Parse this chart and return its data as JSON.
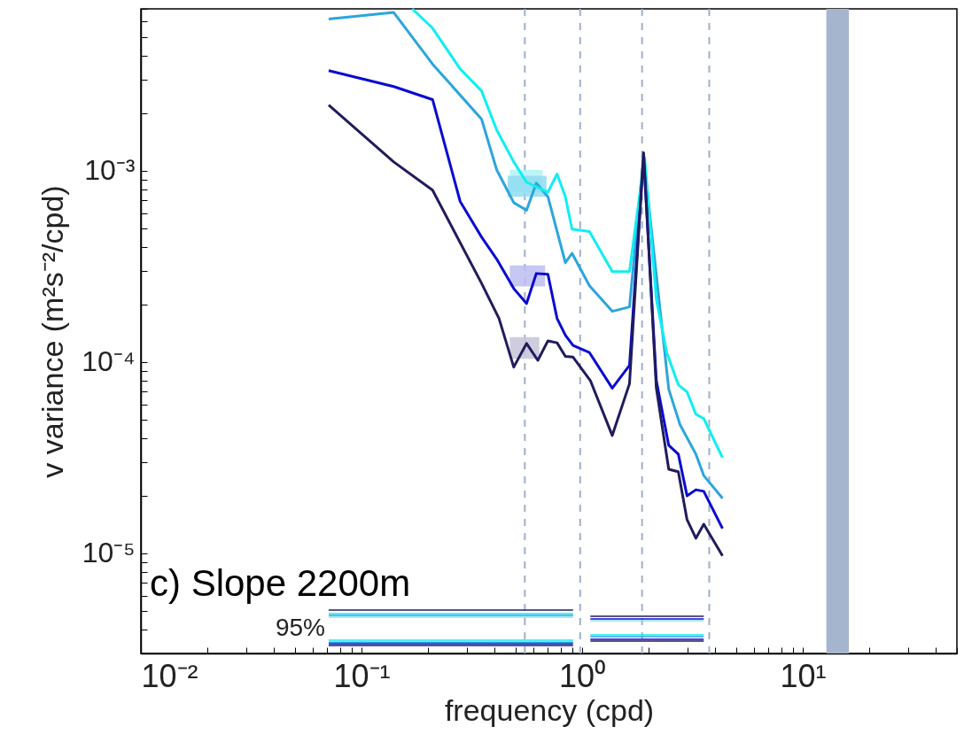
{
  "chart_data": {
    "type": "line",
    "title": "c) Slope 2200m",
    "xlabel": "frequency (cpd)",
    "ylabel": "v variance (m²s⁻²/cpd)",
    "log": "xy",
    "grid": false,
    "marker": "none",
    "line_style": "solid",
    "xlim": [
      0.01,
      50
    ],
    "ylim": [
      3e-06,
      0.007
    ],
    "xticks": [
      {
        "value": 0.01,
        "label": "10⁻²"
      },
      {
        "value": 0.02,
        "label": null
      },
      {
        "value": 0.03,
        "label": null
      },
      {
        "value": 0.04,
        "label": null
      },
      {
        "value": 0.05,
        "label": null
      },
      {
        "value": 0.06,
        "label": null
      },
      {
        "value": 0.07,
        "label": null
      },
      {
        "value": 0.08,
        "label": null
      },
      {
        "value": 0.09,
        "label": null
      },
      {
        "value": 0.1,
        "label": "10⁻¹"
      },
      {
        "value": 0.2,
        "label": null
      },
      {
        "value": 0.3,
        "label": null
      },
      {
        "value": 0.4,
        "label": null
      },
      {
        "value": 0.5,
        "label": null
      },
      {
        "value": 0.6,
        "label": null
      },
      {
        "value": 0.7,
        "label": null
      },
      {
        "value": 0.8,
        "label": null
      },
      {
        "value": 0.9,
        "label": null
      },
      {
        "value": 1,
        "label": "10⁰"
      },
      {
        "value": 2,
        "label": null
      },
      {
        "value": 3,
        "label": null
      },
      {
        "value": 4,
        "label": null
      },
      {
        "value": 5,
        "label": null
      },
      {
        "value": 6,
        "label": null
      },
      {
        "value": 7,
        "label": null
      },
      {
        "value": 8,
        "label": null
      },
      {
        "value": 9,
        "label": null
      },
      {
        "value": 10,
        "label": "10¹"
      },
      {
        "value": 20,
        "label": null
      },
      {
        "value": 30,
        "label": null
      },
      {
        "value": 40,
        "label": null
      },
      {
        "value": 50,
        "label": null
      }
    ],
    "yticks": [
      {
        "value": 4e-06,
        "label": null
      },
      {
        "value": 5e-06,
        "label": null
      },
      {
        "value": 6e-06,
        "label": null
      },
      {
        "value": 7e-06,
        "label": null
      },
      {
        "value": 8e-06,
        "label": null
      },
      {
        "value": 9e-06,
        "label": null
      },
      {
        "value": 1e-05,
        "label": "10⁻⁵"
      },
      {
        "value": 2e-05,
        "label": null
      },
      {
        "value": 3e-05,
        "label": null
      },
      {
        "value": 4e-05,
        "label": null
      },
      {
        "value": 5e-05,
        "label": null
      },
      {
        "value": 6e-05,
        "label": null
      },
      {
        "value": 7e-05,
        "label": null
      },
      {
        "value": 8e-05,
        "label": null
      },
      {
        "value": 9e-05,
        "label": null
      },
      {
        "value": 0.0001,
        "label": "10⁻⁴"
      },
      {
        "value": 0.0002,
        "label": null
      },
      {
        "value": 0.0003,
        "label": null
      },
      {
        "value": 0.0004,
        "label": null
      },
      {
        "value": 0.0005,
        "label": null
      },
      {
        "value": 0.0006,
        "label": null
      },
      {
        "value": 0.0007,
        "label": null
      },
      {
        "value": 0.0008,
        "label": null
      },
      {
        "value": 0.0009,
        "label": null
      },
      {
        "value": 0.001,
        "label": "10⁻³"
      },
      {
        "value": 0.002,
        "label": null
      },
      {
        "value": 0.003,
        "label": null
      },
      {
        "value": 0.004,
        "label": null
      },
      {
        "value": 0.005,
        "label": null
      },
      {
        "value": 0.006,
        "label": null
      },
      {
        "value": 0.007,
        "label": null
      }
    ],
    "series": [
      {
        "type": "line",
        "color": "#2ca5dc",
        "x": [
          0.071,
          0.14,
          0.21,
          0.35,
          0.41,
          0.49,
          0.56,
          0.62,
          0.7,
          0.84,
          0.9,
          1.08,
          1.37,
          1.64,
          1.9,
          2.47,
          2.78,
          3.28,
          3.56,
          4.33
        ],
        "values": [
          0.0062,
          0.0067,
          0.0036,
          0.00186,
          0.00101,
          0.00068,
          0.00062,
          0.00086,
          0.00073,
          0.00033,
          0.00037,
          0.00025,
          0.000184,
          0.000194,
          0.00117,
          7.2e-05,
          4.7e-05,
          3.3e-05,
          2.55e-05,
          1.94e-05
        ]
      },
      {
        "type": "line",
        "color": "#10eef2",
        "x": [
          0.17,
          0.21,
          0.28,
          0.35,
          0.41,
          0.49,
          0.56,
          0.7,
          0.77,
          0.84,
          0.9,
          1.08,
          1.37,
          1.64,
          1.92,
          2.17,
          2.42,
          2.73,
          2.99,
          3.28,
          3.56,
          4.33
        ],
        "values": [
          0.007,
          0.00555,
          0.0034,
          0.00261,
          0.00163,
          0.00111,
          0.00087,
          0.00077,
          0.00096,
          0.00073,
          0.000495,
          0.00048,
          0.000297,
          0.000297,
          0.00117,
          0.000213,
          0.000112,
          7.6e-05,
          6.97e-05,
          5.33e-05,
          5.06e-05,
          3.16e-05
        ]
      },
      {
        "type": "line",
        "color": "#0a0ad2",
        "x": [
          0.071,
          0.14,
          0.21,
          0.28,
          0.35,
          0.41,
          0.49,
          0.56,
          0.62,
          0.7,
          0.77,
          0.84,
          0.91,
          1.08,
          1.37,
          1.64,
          1.9,
          2.17,
          2.47,
          2.73,
          2.99,
          3.28,
          3.56,
          4.33
        ],
        "values": [
          0.00333,
          0.00275,
          0.00235,
          0.00069,
          0.00045,
          0.000345,
          0.000242,
          0.000202,
          0.00029,
          0.000287,
          0.000169,
          0.000138,
          0.000122,
          0.000112,
          7.3e-05,
          9.6e-05,
          0.00119,
          8e-05,
          3.67e-05,
          3.3e-05,
          2e-05,
          2.15e-05,
          2.11e-05,
          1.35e-05
        ]
      },
      {
        "type": "line",
        "color": "#201c5c",
        "x": [
          0.071,
          0.14,
          0.21,
          0.35,
          0.42,
          0.49,
          0.56,
          0.63,
          0.7,
          0.77,
          0.84,
          0.91,
          1.09,
          1.37,
          1.64,
          1.9,
          2.17,
          2.47,
          2.73,
          2.99,
          3.28,
          3.56,
          4.33
        ],
        "values": [
          0.0022,
          0.00111,
          0.00079,
          0.000258,
          0.000169,
          9.4e-05,
          0.000125,
          0.000102,
          0.000129,
          0.000126,
          0.000107,
          0.000106,
          8e-05,
          4.13e-05,
          7.7e-05,
          0.00124,
          7.3e-05,
          2.75e-05,
          2.67e-05,
          1.5e-05,
          1.2e-05,
          1.42e-05,
          9.7e-06
        ]
      },
      {
        "type": "line",
        "color": "#aef4f8",
        "x": [
          0.47,
          0.66
        ],
        "values": [
          null,
          null
        ],
        "lower": [
          0.00077,
          0.00077
        ],
        "upper": [
          0.00101,
          0.00101
        ]
      },
      {
        "type": "line",
        "color": "#8fdcf0",
        "x": [
          0.46,
          0.69
        ],
        "values": [
          null,
          null
        ],
        "lower": [
          0.00073,
          0.00073
        ],
        "upper": [
          0.00094,
          0.00094
        ]
      },
      {
        "type": "line",
        "color": "#bdbdf2",
        "x": [
          0.47,
          0.68
        ],
        "values": [
          null,
          null
        ],
        "lower": [
          0.000248,
          0.000248
        ],
        "upper": [
          0.00032,
          0.00032
        ]
      },
      {
        "type": "line",
        "color": "#c6c4d8",
        "x": [
          0.47,
          0.64
        ],
        "values": [
          null,
          null
        ],
        "lower": [
          0.000104,
          0.000104
        ],
        "upper": [
          0.000135,
          0.000135
        ]
      },
      {
        "type": "line",
        "color": "#201c5c",
        "x": [
          0.071,
          0.91
        ],
        "values": [
          5.06e-06,
          5.06e-06
        ]
      },
      {
        "type": "line",
        "color": "#10eef2",
        "x": [
          0.071,
          0.91
        ],
        "values": [
          4.84e-06,
          4.84e-06
        ]
      },
      {
        "type": "line",
        "color": "#2ca5dc",
        "x": [
          0.071,
          0.91
        ],
        "values": [
          4.74e-06,
          4.74e-06
        ]
      },
      {
        "type": "line",
        "color": "#8fdcf0",
        "x": [
          0.071,
          0.91
        ],
        "values": [
          4.64e-06,
          4.64e-06
        ]
      },
      {
        "type": "line",
        "color": "#10eef2",
        "x": [
          0.071,
          0.91
        ],
        "values": [
          3.52e-06,
          3.52e-06
        ]
      },
      {
        "type": "line",
        "color": "#2ca5dc",
        "x": [
          0.071,
          0.91
        ],
        "values": [
          3.44e-06,
          3.44e-06
        ]
      },
      {
        "type": "line",
        "color": "#0a0ad2",
        "x": [
          0.071,
          0.91
        ],
        "values": [
          3.37e-06,
          3.37e-06
        ]
      },
      {
        "type": "line",
        "color": "#201c5c",
        "x": [
          0.071,
          0.91
        ],
        "values": [
          3.3e-06,
          3.3e-06
        ]
      },
      {
        "type": "line",
        "color": "#201c5c",
        "x": [
          1.09,
          3.56
        ],
        "values": [
          4.69e-06,
          4.69e-06
        ]
      },
      {
        "type": "line",
        "color": "#0a0ad2",
        "x": [
          1.09,
          3.56
        ],
        "values": [
          4.54e-06,
          4.54e-06
        ]
      },
      {
        "type": "line",
        "color": "#8fdcf0",
        "x": [
          1.09,
          3.56
        ],
        "values": [
          4.45e-06,
          4.45e-06
        ]
      },
      {
        "type": "line",
        "color": "#10eef2",
        "x": [
          1.09,
          3.56
        ],
        "values": [
          3.75e-06,
          3.75e-06
        ]
      },
      {
        "type": "line",
        "color": "#2ca5dc",
        "x": [
          1.09,
          3.56
        ],
        "values": [
          3.67e-06,
          3.67e-06
        ]
      },
      {
        "type": "line",
        "color": "#0a0ad2",
        "x": [
          1.09,
          3.56
        ],
        "values": [
          3.56e-06,
          3.56e-06
        ]
      },
      {
        "type": "line",
        "color": "#201c5c",
        "x": [
          1.09,
          3.56
        ],
        "values": [
          3.48e-06,
          3.48e-06
        ]
      }
    ],
    "ref_lines": [
      {
        "axis": "x",
        "value": 0.55,
        "color": "#9fb0c8",
        "line_style": "dashed"
      },
      {
        "axis": "x",
        "value": 0.98,
        "color": "#9fb0c8",
        "line_style": "dashed"
      },
      {
        "axis": "x",
        "value": 1.87,
        "color": "#9fb0c8",
        "line_style": "dashed"
      },
      {
        "axis": "x",
        "value": 3.77,
        "color": "#9fb0c8",
        "line_style": "dashed"
      }
    ],
    "bands": [
      {
        "axis": "x",
        "from": 12.8,
        "to": 16.2,
        "color": "#a5b5ce"
      }
    ],
    "annotations": [
      "95%"
    ]
  }
}
